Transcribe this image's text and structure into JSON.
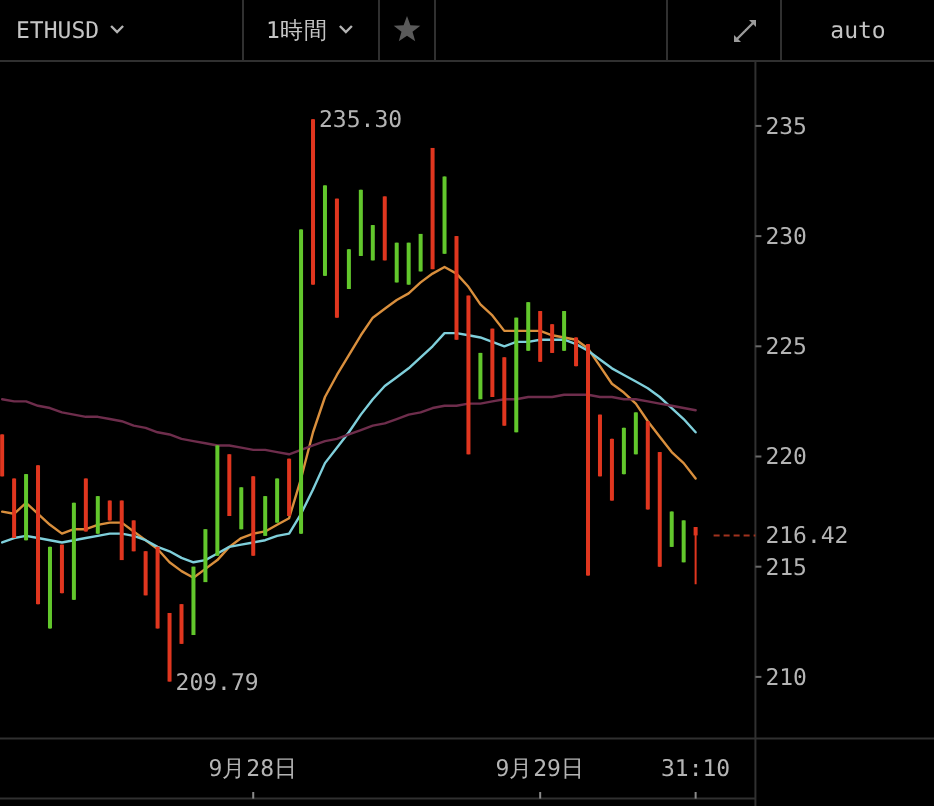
{
  "chart_data": {
    "type": "candlestick",
    "title": "ETHUSD",
    "subtitle": "1時間",
    "categories": [
      null,
      null,
      null,
      null,
      null,
      null,
      null,
      null,
      null,
      null,
      null,
      null,
      null,
      null,
      null,
      null,
      null,
      null,
      null,
      null,
      null,
      "9月28日",
      null,
      null,
      null,
      null,
      null,
      null,
      null,
      null,
      null,
      null,
      null,
      null,
      null,
      null,
      null,
      null,
      null,
      null,
      null,
      null,
      null,
      null,
      null,
      "9月29日",
      null,
      null,
      null,
      null,
      null,
      null,
      null,
      null,
      null,
      null,
      null,
      null,
      "31:10"
    ],
    "ohlc": [
      [
        221.0,
        221.0,
        219.1,
        219.1
      ],
      [
        219.0,
        219.0,
        216.3,
        216.3
      ],
      [
        216.2,
        219.2,
        216.2,
        219.2
      ],
      [
        219.6,
        219.6,
        213.3,
        213.3
      ],
      [
        212.2,
        215.9,
        212.2,
        215.9
      ],
      [
        216.0,
        216.0,
        213.8,
        213.8
      ],
      [
        213.5,
        217.9,
        213.5,
        217.9
      ],
      [
        219.0,
        219.0,
        216.6,
        216.6
      ],
      [
        216.5,
        218.2,
        216.5,
        218.2
      ],
      [
        218.0,
        218.0,
        217.1,
        217.1
      ],
      [
        218.0,
        218.0,
        215.3,
        215.3
      ],
      [
        217.1,
        217.1,
        215.7,
        215.7
      ],
      [
        215.7,
        215.7,
        213.7,
        213.7
      ],
      [
        215.9,
        215.9,
        212.2,
        212.2
      ],
      [
        212.9,
        212.9,
        209.79,
        209.79
      ],
      [
        213.3,
        213.3,
        211.5,
        211.5
      ],
      [
        211.9,
        215.0,
        211.9,
        215.0
      ],
      [
        214.3,
        216.7,
        214.3,
        216.7
      ],
      [
        215.5,
        220.5,
        215.5,
        220.5
      ],
      [
        220.1,
        220.1,
        217.3,
        217.3
      ],
      [
        216.7,
        218.6,
        216.7,
        218.6
      ],
      [
        219.1,
        219.1,
        215.5,
        215.5
      ],
      [
        216.4,
        218.2,
        216.4,
        218.2
      ],
      [
        217.0,
        219.0,
        217.0,
        219.0
      ],
      [
        219.9,
        219.9,
        217.3,
        217.3
      ],
      [
        216.5,
        230.3,
        216.5,
        230.3
      ],
      [
        235.3,
        235.3,
        227.8,
        227.8
      ],
      [
        228.2,
        232.3,
        228.2,
        232.3
      ],
      [
        231.7,
        231.7,
        226.3,
        226.3
      ],
      [
        227.6,
        229.4,
        227.6,
        229.4
      ],
      [
        229.1,
        232.1,
        229.1,
        232.1
      ],
      [
        228.9,
        230.5,
        228.9,
        230.5
      ],
      [
        231.8,
        231.8,
        228.9,
        228.9
      ],
      [
        227.9,
        229.7,
        227.9,
        229.7
      ],
      [
        227.8,
        229.7,
        227.8,
        229.7
      ],
      [
        228.4,
        230.1,
        228.4,
        230.1
      ],
      [
        234.0,
        234.0,
        228.5,
        228.5
      ],
      [
        229.2,
        232.7,
        229.2,
        232.7
      ],
      [
        230.0,
        230.0,
        225.3,
        225.3
      ],
      [
        227.3,
        227.3,
        220.1,
        220.1
      ],
      [
        222.6,
        224.7,
        222.6,
        224.7
      ],
      [
        225.8,
        225.8,
        222.7,
        222.7
      ],
      [
        224.5,
        224.5,
        221.4,
        221.4
      ],
      [
        221.1,
        226.3,
        221.1,
        226.3
      ],
      [
        224.8,
        227.0,
        224.8,
        227.0
      ],
      [
        226.6,
        226.6,
        224.3,
        224.3
      ],
      [
        226.0,
        226.0,
        224.7,
        224.7
      ],
      [
        224.8,
        226.6,
        224.8,
        226.6
      ],
      [
        225.4,
        225.4,
        224.1,
        224.1
      ],
      [
        225.1,
        225.1,
        214.6,
        214.6
      ],
      [
        221.9,
        221.9,
        219.1,
        219.1
      ],
      [
        220.8,
        220.8,
        218.0,
        218.0
      ],
      [
        219.2,
        221.3,
        219.2,
        221.3
      ],
      [
        220.1,
        222.0,
        220.1,
        222.0
      ],
      [
        221.6,
        221.6,
        217.6,
        217.6
      ],
      [
        220.2,
        220.2,
        215.0,
        215.0
      ],
      [
        215.9,
        217.5,
        215.9,
        217.5
      ],
      [
        215.2,
        217.1,
        215.2,
        217.1
      ],
      [
        216.8,
        216.8,
        214.2,
        216.42
      ]
    ],
    "colors": [
      "#e0361f",
      "#e0361f",
      "#62c72c",
      "#e0361f",
      "#62c72c",
      "#e0361f",
      "#62c72c",
      "#e0361f",
      "#62c72c",
      "#e0361f",
      "#e0361f",
      "#e0361f",
      "#e0361f",
      "#e0361f",
      "#e0361f",
      "#e0361f",
      "#62c72c",
      "#62c72c",
      "#62c72c",
      "#e0361f",
      "#62c72c",
      "#e0361f",
      "#62c72c",
      "#62c72c",
      "#e0361f",
      "#62c72c",
      "#e0361f",
      "#62c72c",
      "#e0361f",
      "#62c72c",
      "#62c72c",
      "#62c72c",
      "#e0361f",
      "#62c72c",
      "#62c72c",
      "#62c72c",
      "#e0361f",
      "#62c72c",
      "#e0361f",
      "#e0361f",
      "#62c72c",
      "#e0361f",
      "#e0361f",
      "#62c72c",
      "#62c72c",
      "#e0361f",
      "#e0361f",
      "#62c72c",
      "#e0361f",
      "#e0361f",
      "#e0361f",
      "#e0361f",
      "#62c72c",
      "#62c72c",
      "#e0361f",
      "#e0361f",
      "#62c72c",
      "#62c72c",
      "#e0361f"
    ],
    "series": [
      {
        "type": "line",
        "color": "#d98f3d",
        "values": [
          217.5,
          217.4,
          217.9,
          217.4,
          216.9,
          216.5,
          216.7,
          216.7,
          216.9,
          217.0,
          217.0,
          216.6,
          216.2,
          215.8,
          215.2,
          214.8,
          214.5,
          214.9,
          215.3,
          215.9,
          216.3,
          216.5,
          216.6,
          216.9,
          217.2,
          219.0,
          221.1,
          222.7,
          223.7,
          224.6,
          225.5,
          226.3,
          226.7,
          227.1,
          227.4,
          227.9,
          228.3,
          228.6,
          228.3,
          227.7,
          226.9,
          226.4,
          225.7,
          225.7,
          225.7,
          225.7,
          225.5,
          225.4,
          225.3,
          224.9,
          224.1,
          223.3,
          222.9,
          222.4,
          221.6,
          220.9,
          220.2,
          219.7,
          219.0
        ]
      },
      {
        "type": "line",
        "color": "#7fcfdb",
        "values": [
          216.1,
          216.3,
          216.4,
          216.3,
          216.2,
          216.1,
          216.2,
          216.3,
          216.4,
          216.5,
          216.5,
          216.4,
          216.2,
          215.9,
          215.7,
          215.4,
          215.2,
          215.3,
          215.6,
          215.9,
          216.0,
          216.1,
          216.2,
          216.4,
          216.5,
          217.4,
          218.5,
          219.7,
          220.4,
          221.1,
          221.9,
          222.6,
          223.2,
          223.6,
          224.0,
          224.5,
          225.0,
          225.6,
          225.6,
          225.5,
          225.4,
          225.2,
          225.0,
          225.2,
          225.2,
          225.3,
          225.3,
          225.3,
          225.1,
          224.8,
          224.4,
          224.0,
          223.7,
          223.4,
          223.1,
          222.7,
          222.2,
          221.7,
          221.1
        ]
      },
      {
        "type": "line",
        "color": "#6e2d4c",
        "values": [
          222.6,
          222.5,
          222.5,
          222.3,
          222.2,
          222.0,
          221.9,
          221.8,
          221.8,
          221.7,
          221.6,
          221.4,
          221.3,
          221.1,
          221.0,
          220.8,
          220.7,
          220.6,
          220.5,
          220.5,
          220.4,
          220.3,
          220.3,
          220.2,
          220.1,
          220.3,
          220.5,
          220.7,
          220.8,
          221.0,
          221.2,
          221.4,
          221.5,
          221.7,
          221.9,
          222.0,
          222.2,
          222.3,
          222.3,
          222.4,
          222.4,
          222.5,
          222.6,
          222.6,
          222.7,
          222.7,
          222.7,
          222.8,
          222.8,
          222.8,
          222.7,
          222.7,
          222.6,
          222.6,
          222.5,
          222.4,
          222.3,
          222.2,
          222.1
        ]
      }
    ],
    "ylim": [
      207.2,
      237.9
    ],
    "yticks": [
      210,
      215,
      220,
      225,
      230,
      235
    ],
    "ref_lines": [
      {
        "axis": "y",
        "value": 216.42,
        "label": "216.42",
        "color": "#a0321e",
        "line_style": "dashed"
      }
    ],
    "annotations": [
      "auto",
      "235.30",
      "209.79"
    ]
  }
}
